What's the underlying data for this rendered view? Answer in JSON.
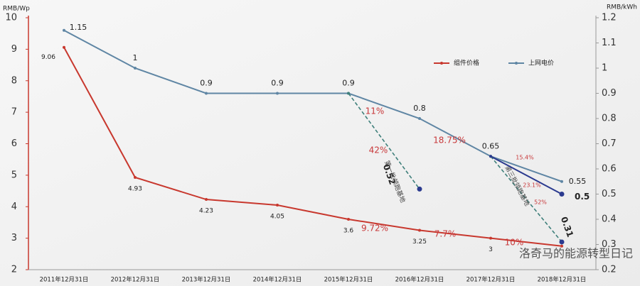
{
  "chart_data": {
    "type": "line",
    "y_label": "RMB/Wp",
    "y2_label": "RMB/kWh",
    "categories": [
      "2011年12月31日",
      "2012年12月31日",
      "2013年12月31日",
      "2014年12月31日",
      "2015年12月31日",
      "2016年12月31日",
      "2017年12月31日",
      "2018年12月31日"
    ],
    "series": [
      {
        "name": "组件价格",
        "color": "#c8382e",
        "values": [
          9.06,
          4.93,
          4.23,
          4.05,
          3.6,
          3.25,
          3,
          2.75
        ],
        "value_labels": [
          "9.06",
          "4.93",
          "4.23",
          "4.05",
          "3.6",
          "3.25",
          "3",
          null
        ]
      },
      {
        "name": "上网电价",
        "color": "#5f86a4",
        "axis": "y2",
        "values": [
          1.15,
          1,
          0.9,
          0.9,
          0.9,
          0.8,
          0.65,
          0.55
        ]
      },
      {
        "name": "第一批领跑基地",
        "color": "#3e7f7a",
        "axis": "y2",
        "dashed": true,
        "legend": false,
        "values": [
          null,
          null,
          null,
          null,
          0.9,
          0.52,
          null,
          null
        ]
      },
      {
        "name": "第三批领跑基地",
        "color": "#3e7f7a",
        "axis": "y2",
        "dashed": true,
        "legend": false,
        "values": [
          null,
          null,
          null,
          null,
          null,
          null,
          0.65,
          0.31
        ]
      },
      {
        "color": "#2b3a8f",
        "axis": "y2",
        "legend": false,
        "values": [
          null,
          null,
          null,
          null,
          null,
          null,
          0.65,
          0.5
        ]
      }
    ],
    "ylim": [
      2,
      10
    ],
    "yticks": [
      2,
      3,
      4,
      5,
      6,
      7,
      8,
      9,
      10
    ],
    "y2lim": [
      0.2,
      1.2
    ],
    "y2ticks": [
      0.2,
      0.3,
      0.4,
      0.5,
      0.6,
      0.7,
      0.8,
      0.9,
      1,
      1.1,
      1.2
    ],
    "legend": "upper right",
    "annotations": [
      "11%",
      "42%",
      "18.75%",
      "15.4%",
      "23.1%",
      "52%",
      "9.72%",
      "7.7%",
      "10%"
    ],
    "watermark": "洛奇马的能源转型日记"
  }
}
